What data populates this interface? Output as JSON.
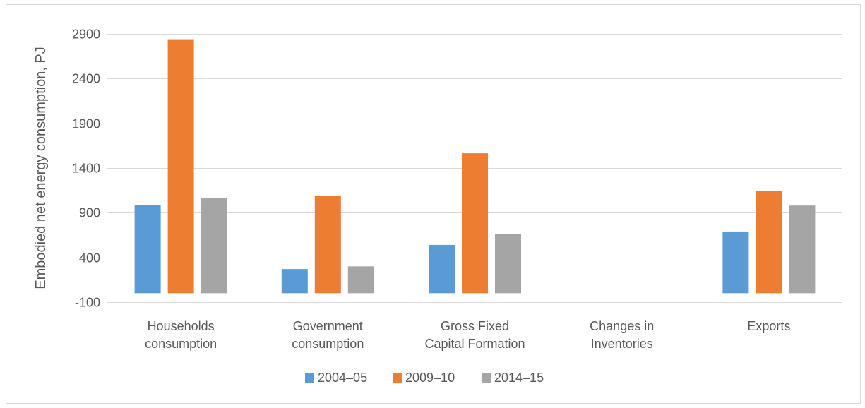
{
  "chart_data": {
    "type": "bar",
    "title": "",
    "xlabel": "",
    "ylabel": "Embodied net energy consumption, PJ",
    "ylim": [
      -100,
      2900
    ],
    "yticks": [
      -100,
      400,
      900,
      1400,
      1900,
      2400,
      2900
    ],
    "grid": true,
    "legend_position": "bottom",
    "categories": [
      [
        "Households",
        "consumption"
      ],
      [
        "Government",
        "consumption"
      ],
      [
        "Gross Fixed",
        "Capital Formation"
      ],
      [
        "Changes in",
        "Inventories"
      ],
      [
        "Exports"
      ]
    ],
    "series": [
      {
        "name": "2004–05",
        "color": "#5b9bd5",
        "values": [
          985,
          270,
          540,
          0,
          690
        ]
      },
      {
        "name": "2009–10",
        "color": "#ed7d31",
        "values": [
          2840,
          1090,
          1565,
          0,
          1140
        ]
      },
      {
        "name": "2014–15",
        "color": "#a5a5a5",
        "values": [
          1065,
          300,
          665,
          0,
          980
        ]
      }
    ]
  }
}
